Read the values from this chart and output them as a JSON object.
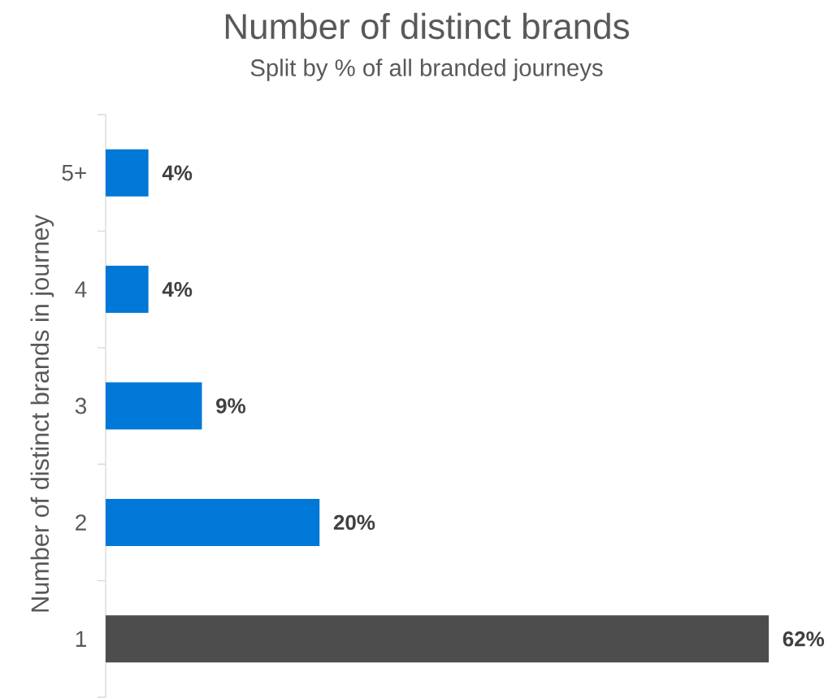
{
  "chart_data": {
    "type": "bar",
    "orientation": "horizontal",
    "title": "Number of distinct brands",
    "subtitle": "Split by % of all branded journeys",
    "ylabel": "Number of distinct brands in journey",
    "categories": [
      "5+",
      "4",
      "3",
      "2",
      "1"
    ],
    "values": [
      4,
      4,
      9,
      20,
      62
    ],
    "colors": [
      "#0078d7",
      "#0078d7",
      "#0078d7",
      "#0078d7",
      "#4d4d4d"
    ],
    "value_labels": [
      "4%",
      "4%",
      "9%",
      "20%",
      "62%"
    ]
  }
}
